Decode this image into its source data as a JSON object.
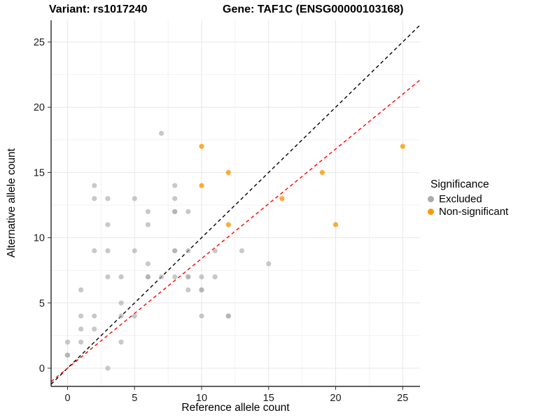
{
  "title": {
    "variant": "Variant: rs1017240",
    "gene": "Gene: TAF1C (ENSG00000103168)"
  },
  "chart_data": {
    "type": "scatter",
    "xlabel": "Reference allele count",
    "ylabel": "Alternative allele count",
    "xlim": [
      -1.3,
      26.3
    ],
    "ylim": [
      -1.5,
      26.7
    ],
    "x_ticks": [
      0,
      5,
      10,
      15,
      20,
      25
    ],
    "y_ticks": [
      0,
      5,
      10,
      15,
      20,
      25
    ],
    "x_minor_ticks": [
      2.5,
      7.5,
      12.5,
      17.5,
      22.5
    ],
    "y_minor_ticks": [
      2.5,
      7.5,
      12.5,
      17.5,
      22.5
    ],
    "grid": true,
    "legend": {
      "title": "Significance",
      "position": "right",
      "entries": [
        {
          "label": "Excluded",
          "color": "#ABABAB"
        },
        {
          "label": "Non-significant",
          "color": "#FB9902"
        }
      ]
    },
    "series": [
      {
        "name": "Excluded",
        "color": "#ABABAB",
        "opacity": 0.65,
        "points": [
          [
            7,
            18
          ],
          [
            2,
            14
          ],
          [
            8,
            14
          ],
          [
            2,
            13
          ],
          [
            3,
            13
          ],
          [
            5,
            13
          ],
          [
            8,
            13
          ],
          [
            6,
            12
          ],
          [
            8,
            12,
            2
          ],
          [
            9,
            12
          ],
          [
            3,
            11
          ],
          [
            6,
            11
          ],
          [
            2,
            9
          ],
          [
            3,
            9
          ],
          [
            5,
            9
          ],
          [
            8,
            9,
            2
          ],
          [
            9,
            9
          ],
          [
            11,
            9
          ],
          [
            13,
            9
          ],
          [
            6,
            8
          ],
          [
            15,
            8
          ],
          [
            3,
            7
          ],
          [
            4,
            7
          ],
          [
            6,
            7,
            2
          ],
          [
            7,
            7
          ],
          [
            8,
            7
          ],
          [
            9,
            7,
            2
          ],
          [
            10,
            7
          ],
          [
            11,
            7
          ],
          [
            1,
            6
          ],
          [
            9,
            6
          ],
          [
            10,
            6,
            2
          ],
          [
            4,
            5
          ],
          [
            1,
            4
          ],
          [
            2,
            4
          ],
          [
            4,
            4
          ],
          [
            5,
            4
          ],
          [
            10,
            4
          ],
          [
            12,
            4,
            2
          ],
          [
            1,
            3
          ],
          [
            2,
            3
          ],
          [
            0,
            2
          ],
          [
            1,
            2
          ],
          [
            4,
            2
          ],
          [
            0,
            1,
            2
          ],
          [
            3,
            0
          ]
        ]
      },
      {
        "name": "Non-significant",
        "color": "#FB9902",
        "opacity": 0.8,
        "points": [
          [
            10,
            17
          ],
          [
            25,
            17
          ],
          [
            12,
            15
          ],
          [
            19,
            15
          ],
          [
            10,
            14
          ],
          [
            16,
            13
          ],
          [
            12,
            11
          ],
          [
            20,
            11
          ]
        ]
      }
    ],
    "reference_lines": [
      {
        "name": "identity-line",
        "slope": 1,
        "intercept": 0,
        "color": "#000000",
        "style": "dashed"
      },
      {
        "name": "expected-ratio-line",
        "slope": 0.84,
        "intercept": 0,
        "color": "#FF0000",
        "style": "dashed"
      }
    ]
  }
}
